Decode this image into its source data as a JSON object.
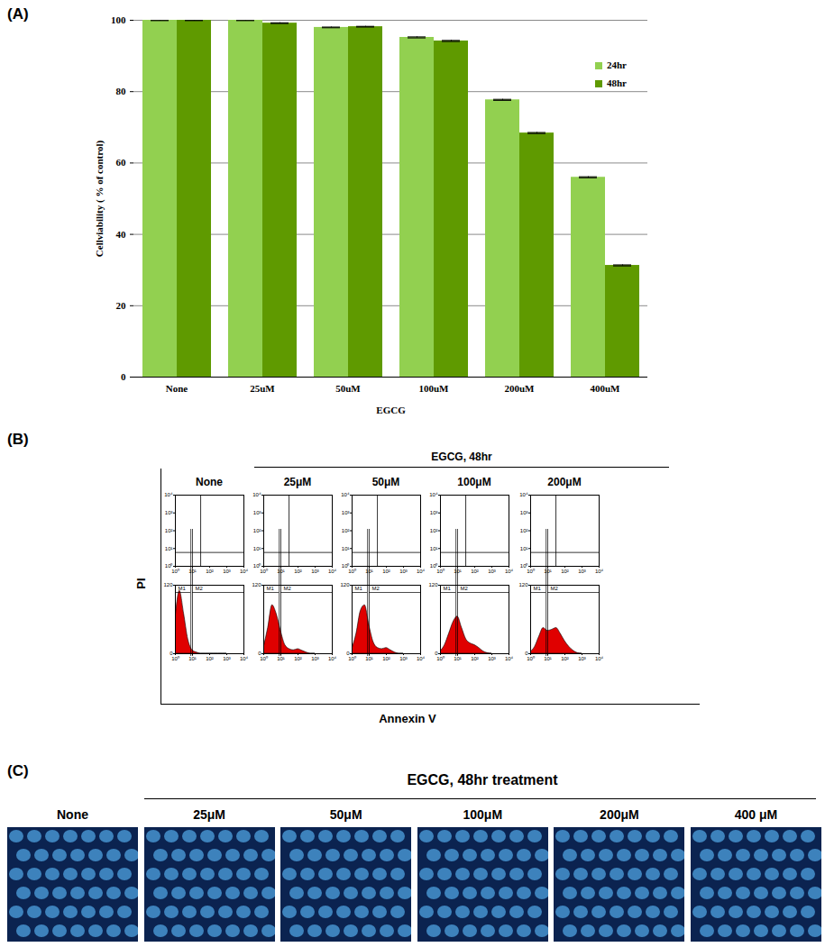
{
  "chart_data": {
    "type": "bar",
    "panel_label": "(A)",
    "x_label": "EGCG",
    "y_label": "Cellviability ( % of control)",
    "categories": [
      "None",
      "25uM",
      "50uM",
      "100uM",
      "200uM",
      "400uM"
    ],
    "series": [
      {
        "name": "24hr",
        "color": "#92d050",
        "values": [
          100,
          100,
          98,
          95.2,
          77.7,
          56
        ],
        "error": [
          0.1,
          0.1,
          0.1,
          0.15,
          0.15,
          0.15
        ]
      },
      {
        "name": "48hr",
        "color": "#5f9a00",
        "values": [
          100,
          99.2,
          98.2,
          94.2,
          68.4,
          31.3
        ],
        "error": [
          0.1,
          0.1,
          0.1,
          0.15,
          0.15,
          0.15
        ]
      }
    ],
    "ylim": [
      0,
      100
    ],
    "yticks": [
      0,
      20,
      40,
      60,
      80,
      100
    ],
    "grid": true,
    "legend": "top-right"
  },
  "panel_b": {
    "label": "(B)",
    "header": "EGCG, 48hr",
    "y_label": "PI",
    "x_label": "Annexin V",
    "xlim": [
      1,
      10000
    ],
    "ylim": [
      1,
      10000
    ],
    "ticks": [
      {
        "value": 1,
        "label": "10⁰"
      },
      {
        "value": 10,
        "label": "10¹"
      },
      {
        "value": 100,
        "label": "10²"
      },
      {
        "value": 1000,
        "label": "10³"
      },
      {
        "value": 10000,
        "label": "10⁴"
      }
    ],
    "quadrant_x": 30,
    "quadrant_y": 6,
    "hist_ylim": [
      0,
      120
    ],
    "hist_yticks": [
      0,
      120
    ],
    "gate_labels": [
      "M1",
      "M2"
    ],
    "m1": [
      1,
      8
    ],
    "m2": [
      10,
      10000
    ],
    "hist_x": [
      1,
      1.8,
      3.2,
      5.6,
      10,
      18,
      32,
      56,
      100,
      180,
      320,
      560,
      1000
    ],
    "panels": [
      {
        "title": "None",
        "hist_counts": [
          60,
          110,
          70,
          25,
          6,
          2,
          0,
          0,
          0,
          0,
          0,
          0,
          0
        ]
      },
      {
        "title": "25μM",
        "hist_counts": [
          10,
          45,
          85,
          70,
          40,
          15,
          8,
          6,
          8,
          5,
          2,
          0,
          0
        ]
      },
      {
        "title": "50μM",
        "hist_counts": [
          8,
          35,
          75,
          85,
          50,
          20,
          10,
          8,
          10,
          6,
          2,
          0,
          0
        ]
      },
      {
        "title": "100μM",
        "hist_counts": [
          4,
          15,
          35,
          55,
          65,
          45,
          25,
          18,
          15,
          10,
          4,
          1,
          0
        ]
      },
      {
        "title": "200μM",
        "hist_counts": [
          3,
          12,
          30,
          45,
          40,
          42,
          45,
          35,
          22,
          12,
          5,
          1,
          0
        ]
      }
    ]
  },
  "panel_c": {
    "label": "(C)",
    "header": "EGCG, 48hr treatment",
    "images": [
      "None",
      "25μM",
      "50μM",
      "100μM",
      "200μM",
      "400 μM"
    ]
  }
}
